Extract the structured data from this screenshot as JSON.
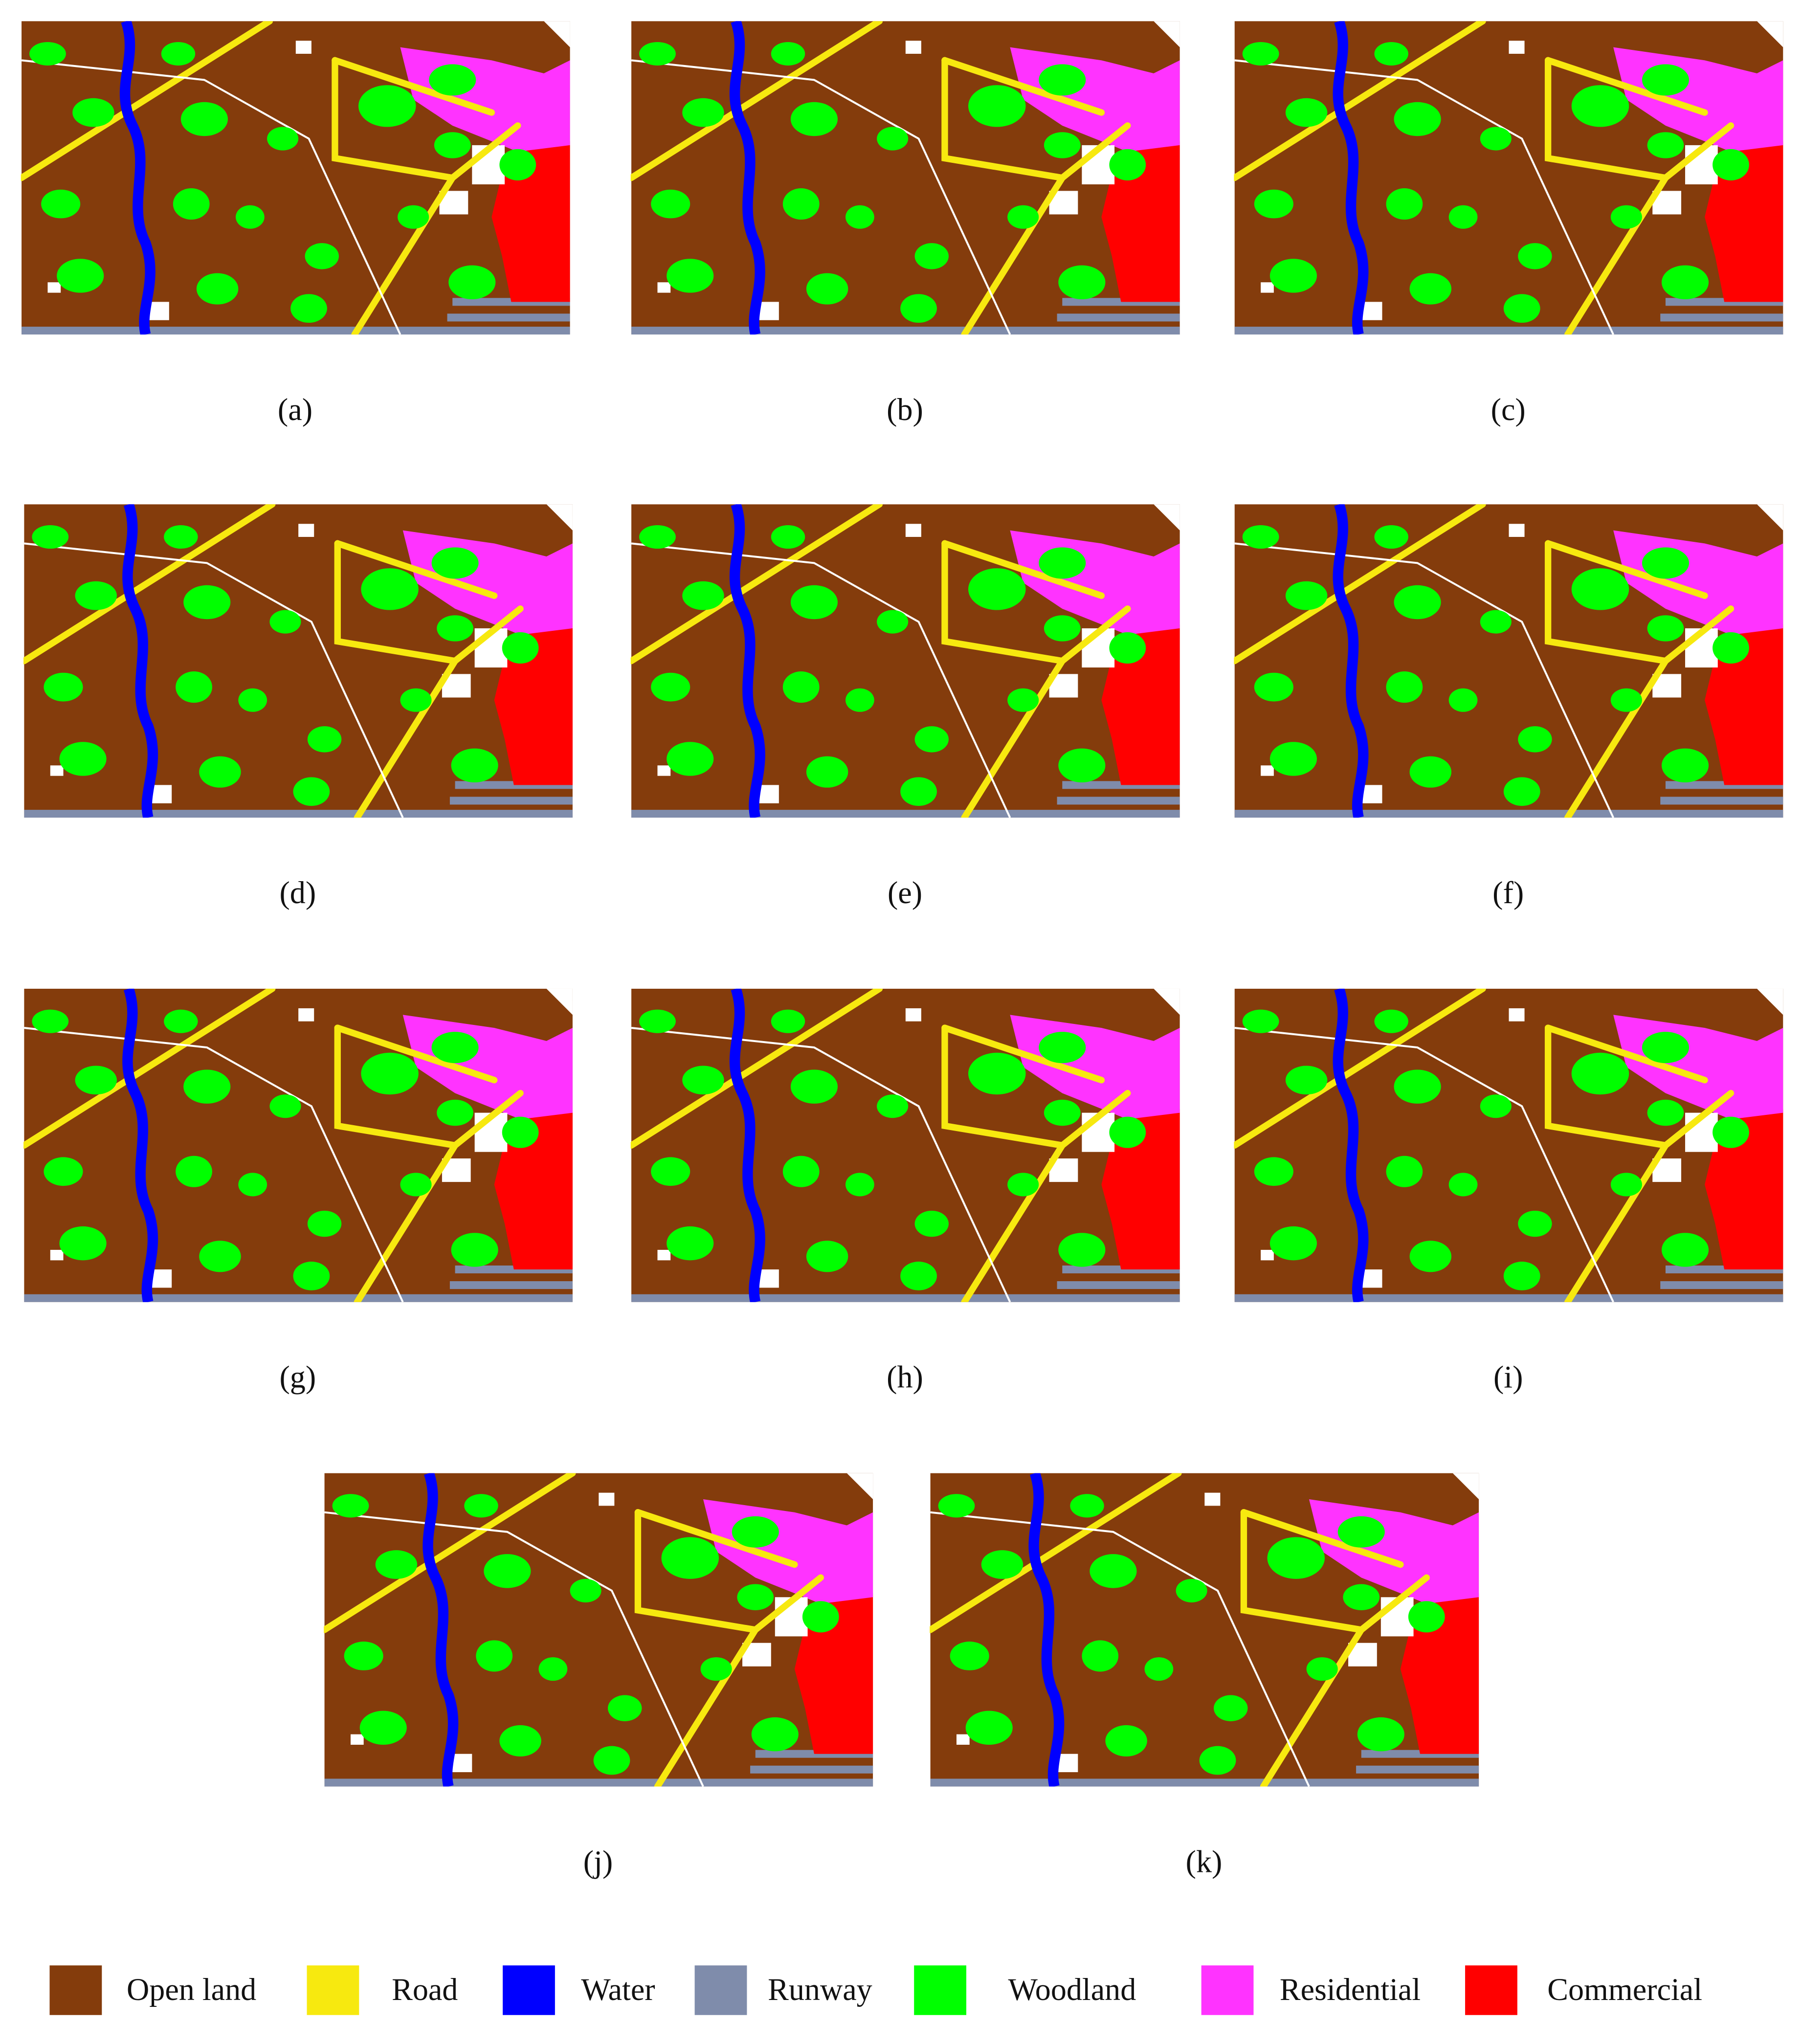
{
  "panels": [
    {
      "label": "(a)"
    },
    {
      "label": "(b)"
    },
    {
      "label": "(c)"
    },
    {
      "label": "(d)"
    },
    {
      "label": "(e)"
    },
    {
      "label": "(f)"
    },
    {
      "label": "(g)"
    },
    {
      "label": "(h)"
    },
    {
      "label": "(i)"
    },
    {
      "label": "(j)"
    },
    {
      "label": "(k)"
    }
  ],
  "legend": [
    {
      "name": "Open land",
      "color": "#843c0c"
    },
    {
      "name": "Road",
      "color": "#f7e90f"
    },
    {
      "name": "Water",
      "color": "#0000ff"
    },
    {
      "name": "Runway",
      "color": "#7f8cab"
    },
    {
      "name": "Woodland",
      "color": "#00ff00"
    },
    {
      "name": "Residential",
      "color": "#ff33ff"
    },
    {
      "name": "Commercial",
      "color": "#ff0000"
    }
  ]
}
